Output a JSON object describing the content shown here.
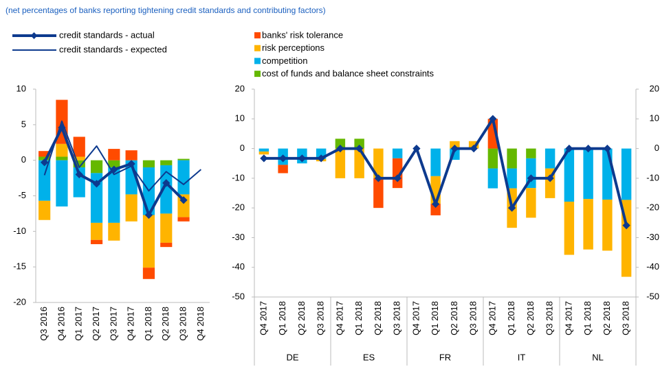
{
  "chart_data": [
    {
      "type": "bar",
      "stacked": true,
      "subtitle": "(net percentages of banks reporting tightening credit standards and contributing factors)",
      "categories": [
        "Q3 2016",
        "Q4 2016",
        "Q1 2017",
        "Q2 2017",
        "Q3 2017",
        "Q4 2017",
        "Q1 2018",
        "Q2 2018",
        "Q3 2018",
        "Q4 2018"
      ],
      "series": [
        {
          "name": "credit standards - actual",
          "kind": "line",
          "width": 4,
          "markers": true,
          "color": "#0d3a8e",
          "values": [
            -0.3,
            4.6,
            -2.0,
            -3.3,
            -1.3,
            -0.5,
            -7.7,
            -3.2,
            -5.6,
            null
          ]
        },
        {
          "name": "credit standards - expected",
          "kind": "line",
          "width": 2,
          "markers": false,
          "color": "#0d3a8e",
          "values": [
            -2.1,
            5.5,
            -1.0,
            2.0,
            -2.0,
            -0.8,
            -4.3,
            -1.6,
            -3.4,
            -1.3
          ]
        },
        {
          "name": "banks' risk tolerance",
          "kind": "bar",
          "color": "#ff4b00",
          "values": [
            0.8,
            6.2,
            2.8,
            -0.6,
            1.6,
            1.4,
            -1.6,
            -0.6,
            -0.6,
            null
          ]
        },
        {
          "name": "risk perceptions",
          "kind": "bar",
          "color": "#ffb400",
          "values": [
            -2.7,
            1.8,
            0.5,
            -2.4,
            -2.5,
            -3.8,
            -7.4,
            -4.1,
            -3.2,
            null
          ]
        },
        {
          "name": "competition",
          "kind": "bar",
          "color": "#00b1ea",
          "values": [
            -5.7,
            -6.5,
            -4.2,
            -7.0,
            -7.8,
            -4.8,
            -6.7,
            -6.8,
            -4.8,
            null
          ]
        },
        {
          "name": "cost of funds and balance sheet constraints",
          "kind": "bar",
          "color": "#65b800",
          "values": [
            0.5,
            0.5,
            -1.0,
            -1.8,
            -1.0,
            0,
            -1.0,
            -0.7,
            0.2,
            null
          ]
        }
      ],
      "ylim": [
        -20,
        10
      ],
      "yticks": [
        -20,
        -15,
        -10,
        -5,
        0,
        5,
        10
      ]
    },
    {
      "type": "bar",
      "stacked": true,
      "groups": [
        "DE",
        "ES",
        "FR",
        "IT",
        "NL"
      ],
      "categories": [
        "Q4 2017",
        "Q1 2018",
        "Q2 2018",
        "Q3 2018",
        "Q4 2017",
        "Q1 2018",
        "Q2 2018",
        "Q3 2018",
        "Q4 2017",
        "Q1 2018",
        "Q2 2018",
        "Q3 2018",
        "Q4 2017",
        "Q1 2018",
        "Q2 2018",
        "Q3 2018",
        "Q4 2017",
        "Q1 2018",
        "Q2 2018",
        "Q3 2018"
      ],
      "series": [
        {
          "kind": "line",
          "width": 4,
          "markers": true,
          "color": "#0d3a8e",
          "values": [
            -3.3,
            -3.3,
            -3.3,
            -3.3,
            0,
            0,
            -10,
            -10,
            0,
            -18.7,
            0,
            0,
            10,
            -20,
            -10,
            -10,
            0,
            0,
            0,
            -25.9
          ]
        },
        {
          "kind": "bar",
          "color": "#ff4b00",
          "values": [
            0,
            -2.8,
            0,
            0,
            0,
            0,
            -10,
            -10,
            0,
            -3.9,
            0,
            0,
            10,
            0,
            0,
            0,
            0,
            0,
            0,
            0
          ]
        },
        {
          "kind": "bar",
          "color": "#ffb400",
          "values": [
            -1,
            0,
            0,
            -0.8,
            -10,
            -10,
            -10,
            0,
            0,
            -9.3,
            2.5,
            2.5,
            0,
            -13.3,
            -10,
            -10,
            -17.9,
            -17,
            -17.2,
            -25.9
          ]
        },
        {
          "kind": "bar",
          "color": "#00b1ea",
          "values": [
            -1,
            -5.5,
            -5,
            -3.5,
            0,
            0,
            0,
            -3.3,
            0,
            -9.3,
            -3.8,
            0,
            -6.7,
            -6.7,
            -10,
            -6.7,
            -17.9,
            -17,
            -17.2,
            -17.3
          ]
        },
        {
          "kind": "bar",
          "color": "#65b800",
          "values": [
            0,
            0,
            0,
            0,
            3.3,
            3.3,
            0,
            0,
            0,
            0,
            0,
            0,
            -6.7,
            -6.7,
            -3.3,
            0,
            0,
            0,
            0,
            0
          ]
        }
      ],
      "ylim": [
        -50,
        20
      ],
      "yticks": [
        -50,
        -40,
        -30,
        -20,
        -10,
        0,
        10,
        20
      ],
      "y2lim": [
        -50,
        20
      ],
      "y2ticks": [
        -50,
        -40,
        -30,
        -20,
        -10,
        0,
        10,
        20
      ]
    }
  ]
}
